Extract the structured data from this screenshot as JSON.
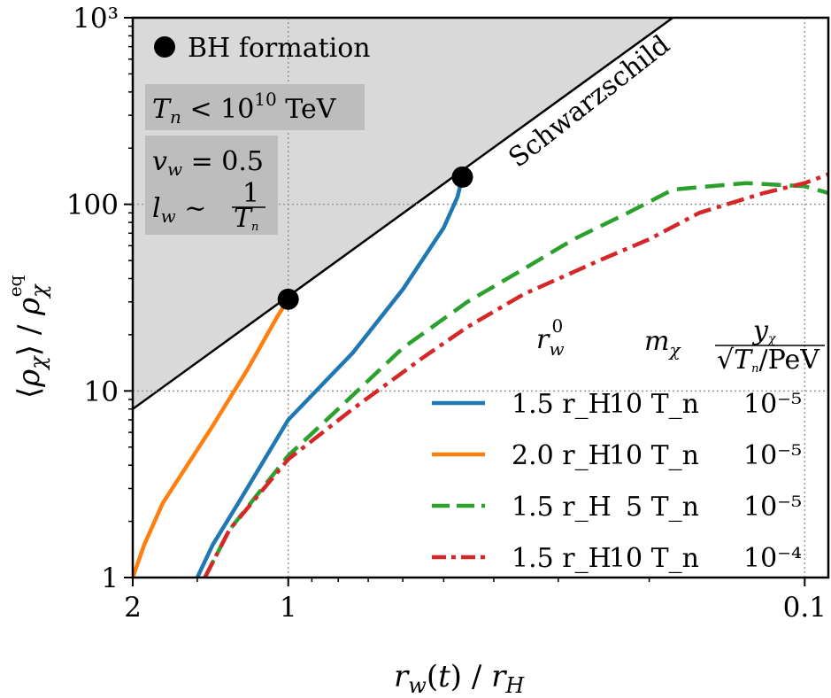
{
  "chart_data": {
    "type": "line",
    "xscale": "log",
    "yscale": "log",
    "x_inverted": true,
    "xlim": [
      2,
      0.09
    ],
    "ylim": [
      1,
      1000
    ],
    "xlabel": "r_w(t) / r_H",
    "ylabel": "⟨ρ_χ⟩ / ρ_χ^eq",
    "x_ticks": [
      {
        "value": 2,
        "label": "2"
      },
      {
        "value": 1,
        "label": "1"
      },
      {
        "value": 0.1,
        "label": "0.1"
      }
    ],
    "y_ticks": [
      {
        "value": 1,
        "label": "1"
      },
      {
        "value": 10,
        "label": "10"
      },
      {
        "value": 100,
        "label": "100"
      },
      {
        "value": 1000,
        "label": "10³"
      }
    ],
    "grid_lines": {
      "x": [
        1,
        0.1
      ],
      "y": [
        10,
        100
      ]
    },
    "schwarzschild": {
      "label": "Schwarzschild",
      "points": [
        [
          2,
          8
        ],
        [
          0.18,
          1000
        ]
      ],
      "region_label": "BH formation",
      "region_color": "#d9d9d9"
    },
    "annotations": [
      {
        "name": "temperature",
        "text": "Tn < 10^10 TeV"
      },
      {
        "name": "wall-velocity",
        "text": "v_w = 0.5"
      },
      {
        "name": "wall-width",
        "text": "l_w ~ 1/Tn"
      }
    ],
    "legend": {
      "placement": "lower-right",
      "headers": [
        "r_w^0",
        "m_χ",
        "y_χ / √(Tn/PeV)"
      ],
      "entries": [
        {
          "r0": "1.5 r_H",
          "m": "10 T_n",
          "y": "10⁻⁵",
          "color": "#1f77b4",
          "dash": "solid"
        },
        {
          "r0": "2.0 r_H",
          "m": "10 T_n",
          "y": "10⁻⁵",
          "color": "#ff7f0e",
          "dash": "solid"
        },
        {
          "r0": "1.5 r_H",
          "m": "5 T_n",
          "y": "10⁻⁵",
          "color": "#2ca02c",
          "dash": "dashed"
        },
        {
          "r0": "1.5 r_H",
          "m": "10 T_n",
          "y": "10⁻⁴",
          "color": "#d62728",
          "dash": "dashdot"
        }
      ]
    },
    "series": [
      {
        "color": "#1f77b4",
        "dash": "solid",
        "points": [
          [
            1.5,
            1.0
          ],
          [
            1.4,
            1.5
          ],
          [
            1.25,
            2.5
          ],
          [
            1.0,
            7.0
          ],
          [
            0.75,
            16
          ],
          [
            0.6,
            35
          ],
          [
            0.5,
            75
          ],
          [
            0.47,
            110
          ],
          [
            0.46,
            140
          ]
        ],
        "endpoint": [
          0.46,
          140
        ]
      },
      {
        "color": "#ff7f0e",
        "dash": "solid",
        "points": [
          [
            2.0,
            1.0
          ],
          [
            1.9,
            1.5
          ],
          [
            1.75,
            2.5
          ],
          [
            1.4,
            6.5
          ],
          [
            1.2,
            13
          ],
          [
            1.05,
            25
          ],
          [
            1.0,
            31
          ]
        ],
        "endpoint": [
          1.0,
          31
        ]
      },
      {
        "color": "#2ca02c",
        "dash": "dashed",
        "points": [
          [
            1.45,
            1.0
          ],
          [
            1.3,
            1.8
          ],
          [
            1.0,
            4.5
          ],
          [
            0.8,
            8
          ],
          [
            0.6,
            17
          ],
          [
            0.45,
            30
          ],
          [
            0.35,
            45
          ],
          [
            0.28,
            65
          ],
          [
            0.22,
            90
          ],
          [
            0.18,
            120
          ],
          [
            0.13,
            130
          ],
          [
            0.1,
            125
          ],
          [
            0.09,
            115
          ]
        ]
      },
      {
        "color": "#d62728",
        "dash": "dashdot",
        "points": [
          [
            1.45,
            1.0
          ],
          [
            1.3,
            1.8
          ],
          [
            1.0,
            4.3
          ],
          [
            0.75,
            8
          ],
          [
            0.55,
            15
          ],
          [
            0.45,
            22
          ],
          [
            0.35,
            33
          ],
          [
            0.25,
            50
          ],
          [
            0.2,
            65
          ],
          [
            0.16,
            90
          ],
          [
            0.12,
            115
          ],
          [
            0.1,
            130
          ],
          [
            0.09,
            145
          ]
        ]
      }
    ]
  }
}
